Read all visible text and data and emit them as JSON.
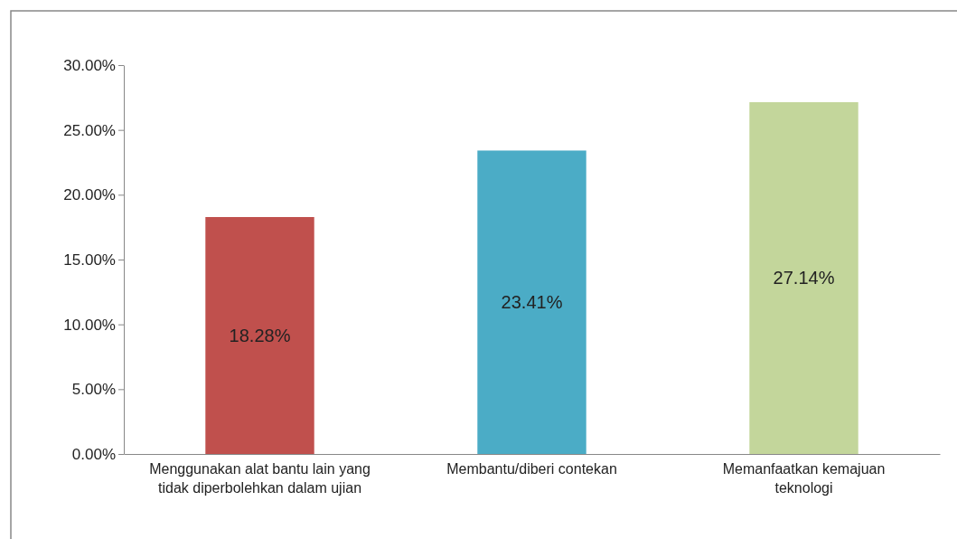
{
  "chart_data": {
    "type": "bar",
    "categories": [
      "Menggunakan alat bantu lain yang tidak diperbolehkan dalam ujian",
      "Membantu/diberi contekan",
      "Memanfaatkan kemajuan teknologi"
    ],
    "values": [
      18.28,
      23.41,
      27.14
    ],
    "colors": [
      "#c0504d",
      "#4bacc6",
      "#c3d69b"
    ],
    "value_labels": [
      "18.28%",
      "23.41%",
      "27.14%"
    ],
    "ylim": [
      0,
      30
    ],
    "yticks": [
      {
        "value": 0,
        "label": "0.00%"
      },
      {
        "value": 5,
        "label": "5.00%"
      },
      {
        "value": 10,
        "label": "10.00%"
      },
      {
        "value": 15,
        "label": "15.00%"
      },
      {
        "value": 20,
        "label": "20.00%"
      },
      {
        "value": 25,
        "label": "25.00%"
      },
      {
        "value": 30,
        "label": "30.00%"
      }
    ]
  }
}
